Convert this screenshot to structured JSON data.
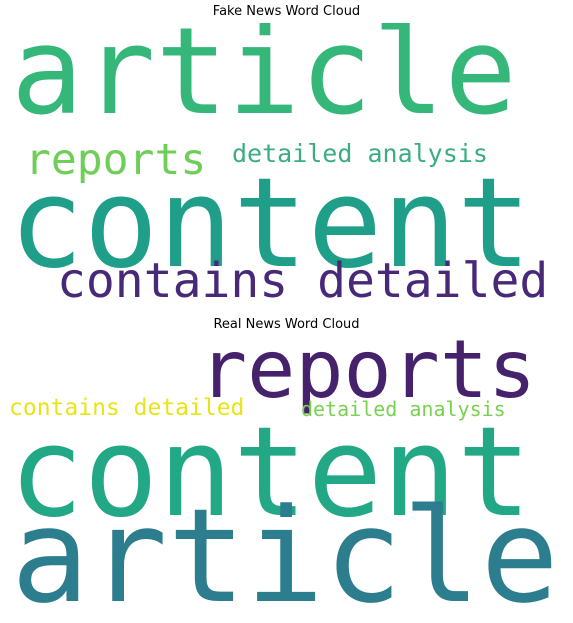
{
  "figure": {
    "panels": [
      {
        "title": "Fake News Word Cloud",
        "words": [
          {
            "text": "article",
            "color": "#35b779"
          },
          {
            "text": "reports",
            "color": "#6ece58"
          },
          {
            "text": "detailed analysis",
            "color": "#3bad7f"
          },
          {
            "text": "content",
            "color": "#1f9e89"
          },
          {
            "text": "contains detailed",
            "color": "#482878"
          }
        ]
      },
      {
        "title": "Real News Word Cloud",
        "words": [
          {
            "text": "reports",
            "color": "#46226d"
          },
          {
            "text": "contains detailed",
            "color": "#e8e419"
          },
          {
            "text": "detailed analysis",
            "color": "#7ad151"
          },
          {
            "text": "content",
            "color": "#22a884"
          },
          {
            "text": "article",
            "color": "#2c7d8e"
          }
        ]
      }
    ]
  }
}
